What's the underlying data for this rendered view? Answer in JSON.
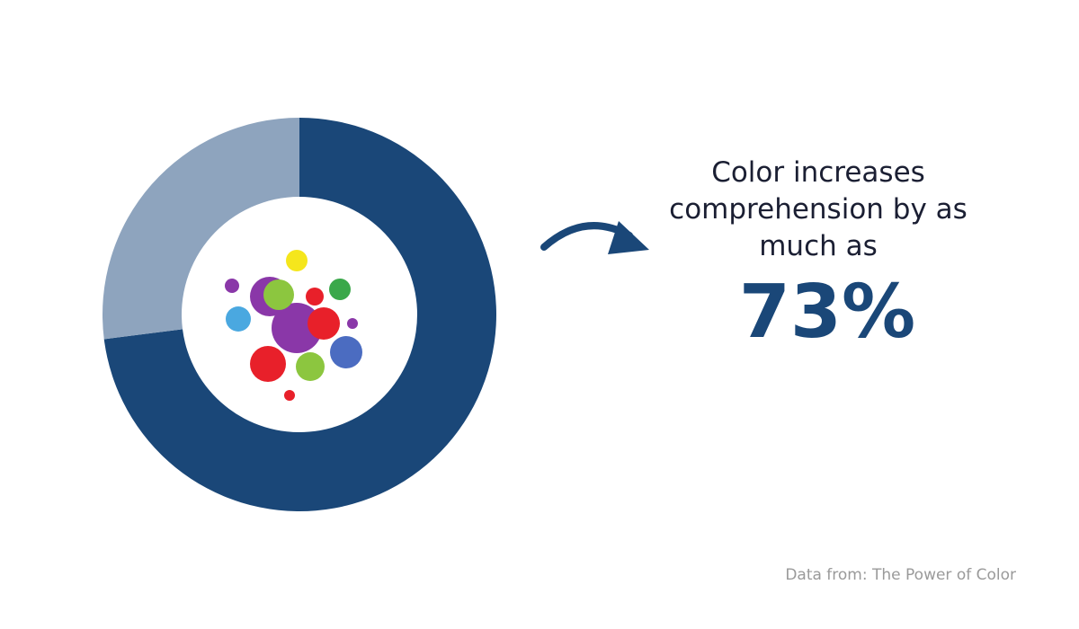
{
  "chart_data": {
    "type": "donut",
    "values": [
      73,
      27
    ],
    "value_labels": [
      "73%",
      null
    ],
    "colors": [
      "#1a4778",
      "#8ea4be"
    ],
    "annotation": "Color increases comprehension by as much as",
    "source": "Data from: The Power of Color"
  }
}
